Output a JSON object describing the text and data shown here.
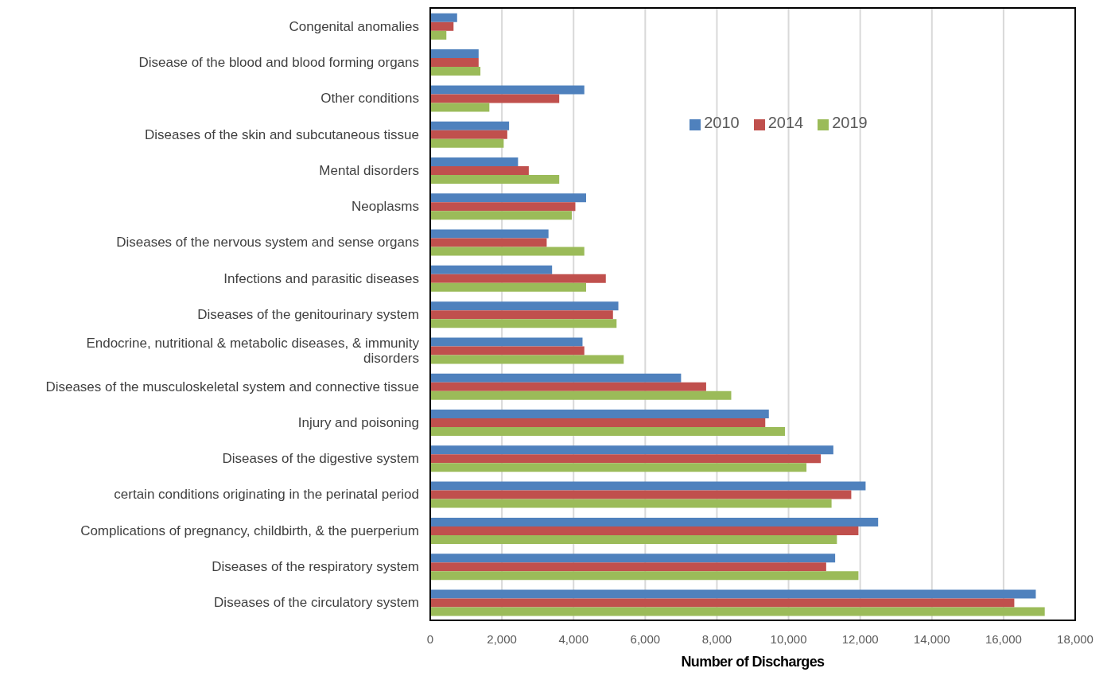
{
  "chart_data": {
    "type": "bar",
    "orientation": "horizontal",
    "categories": [
      "Congenital anomalies",
      "Disease of the blood and blood forming organs",
      "Other conditions",
      "Diseases of the skin and subcutaneous tissue",
      "Mental disorders",
      "Neoplasms",
      "Diseases of the nervous system and sense organs",
      "Infections and parasitic diseases",
      "Diseases of the genitourinary system",
      "Endocrine, nutritional & metabolic diseases, & immunity disorders",
      "Diseases of the musculoskeletal system and connective tissue",
      "Injury and poisoning",
      "Diseases of the digestive system",
      "certain conditions originating in the perinatal period",
      "Complications of pregnancy, childbirth, & the puerperium",
      "Diseases of the respiratory system",
      "Diseases of the circulatory system"
    ],
    "series": [
      {
        "name": "2010",
        "color": "#4f81bd",
        "values": [
          750,
          1350,
          4300,
          2200,
          2450,
          4350,
          3300,
          3400,
          5250,
          4250,
          7000,
          9450,
          11250,
          12150,
          12500,
          11300,
          16900
        ]
      },
      {
        "name": "2014",
        "color": "#c0504d",
        "values": [
          650,
          1350,
          3600,
          2150,
          2750,
          4050,
          3250,
          4900,
          5100,
          4300,
          7700,
          9350,
          10900,
          11750,
          11950,
          11050,
          16300
        ]
      },
      {
        "name": "2019",
        "color": "#9bbb59",
        "values": [
          450,
          1400,
          1650,
          2050,
          3600,
          3950,
          4300,
          4350,
          5200,
          5400,
          8400,
          9900,
          10500,
          11200,
          11350,
          11950,
          17150
        ]
      }
    ],
    "xlabel": "Number of Discharges",
    "xlim": [
      0,
      18000
    ],
    "xticks": [
      0,
      {
        "value": 2000,
        "label": "2,000"
      },
      {
        "value": 4000,
        "label": "4,000"
      },
      {
        "value": 6000,
        "label": "6,000"
      },
      {
        "value": 8000,
        "label": "8,000"
      },
      {
        "value": 10000,
        "label": "10,000"
      },
      {
        "value": 12000,
        "label": "12,000"
      },
      {
        "value": 14000,
        "label": "14,000"
      },
      {
        "value": 16000,
        "label": "16,000"
      },
      {
        "value": 18000,
        "label": "18,000"
      }
    ],
    "grid": "x",
    "legend": "top right"
  }
}
